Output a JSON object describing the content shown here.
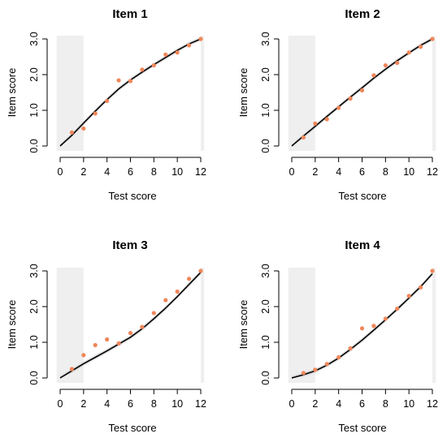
{
  "colors": {
    "point": "#f0865a",
    "curve": "#000000",
    "band": "#c8c8c8",
    "shade": "#efefef",
    "axis": "#000000"
  },
  "chart_data": [
    {
      "type": "scatter",
      "title": "Item 1",
      "xlabel": "Test score",
      "ylabel": "Item score",
      "xlim": [
        0,
        12
      ],
      "ylim": [
        0,
        3
      ],
      "xticks": [
        "0",
        "2",
        "4",
        "6",
        "8",
        "10",
        "12"
      ],
      "yticks": [
        "0.0",
        "1.0",
        "2.0",
        "3.0"
      ],
      "shaded_x": [
        [
          -0.3,
          2
        ],
        [
          12,
          12.3
        ]
      ],
      "points": [
        [
          1,
          0.38
        ],
        [
          2,
          0.49
        ],
        [
          3,
          0.91
        ],
        [
          4,
          1.26
        ],
        [
          5,
          1.84
        ],
        [
          6,
          1.82
        ],
        [
          7,
          2.14
        ],
        [
          8,
          2.26
        ],
        [
          9,
          2.56
        ],
        [
          10,
          2.62
        ],
        [
          11,
          2.82
        ],
        [
          12,
          3.0
        ]
      ],
      "curve": [
        [
          0,
          0.0
        ],
        [
          1,
          0.3
        ],
        [
          2,
          0.64
        ],
        [
          3,
          0.98
        ],
        [
          4,
          1.3
        ],
        [
          5,
          1.6
        ],
        [
          6,
          1.85
        ],
        [
          7,
          2.07
        ],
        [
          8,
          2.28
        ],
        [
          9,
          2.48
        ],
        [
          10,
          2.68
        ],
        [
          11,
          2.86
        ],
        [
          12,
          3.0
        ]
      ]
    },
    {
      "type": "scatter",
      "title": "Item 2",
      "xlabel": "Test score",
      "ylabel": "Item score",
      "xlim": [
        0,
        12
      ],
      "ylim": [
        0,
        3
      ],
      "xticks": [
        "0",
        "2",
        "4",
        "6",
        "8",
        "10",
        "12"
      ],
      "yticks": [
        "0.0",
        "1.0",
        "2.0",
        "3.0"
      ],
      "shaded_x": [
        [
          -0.3,
          2
        ],
        [
          12,
          12.3
        ]
      ],
      "points": [
        [
          1,
          0.24
        ],
        [
          2,
          0.63
        ],
        [
          3,
          0.75
        ],
        [
          4,
          1.07
        ],
        [
          5,
          1.33
        ],
        [
          6,
          1.56
        ],
        [
          7,
          1.98
        ],
        [
          8,
          2.26
        ],
        [
          9,
          2.33
        ],
        [
          10,
          2.62
        ],
        [
          11,
          2.78
        ],
        [
          12,
          3.0
        ]
      ],
      "curve": [
        [
          0,
          0.0
        ],
        [
          1,
          0.28
        ],
        [
          2,
          0.55
        ],
        [
          3,
          0.83
        ],
        [
          4,
          1.1
        ],
        [
          5,
          1.37
        ],
        [
          6,
          1.63
        ],
        [
          7,
          1.9
        ],
        [
          8,
          2.15
        ],
        [
          9,
          2.39
        ],
        [
          10,
          2.61
        ],
        [
          11,
          2.82
        ],
        [
          12,
          3.0
        ]
      ]
    },
    {
      "type": "scatter",
      "title": "Item 3",
      "xlabel": "Test score",
      "ylabel": "Item score",
      "xlim": [
        0,
        12
      ],
      "ylim": [
        0,
        3
      ],
      "xticks": [
        "0",
        "2",
        "4",
        "6",
        "8",
        "10",
        "12"
      ],
      "yticks": [
        "0.0",
        "1.0",
        "2.0",
        "3.0"
      ],
      "shaded_x": [
        [
          -0.3,
          2
        ],
        [
          12,
          12.3
        ]
      ],
      "points": [
        [
          1,
          0.25
        ],
        [
          2,
          0.64
        ],
        [
          3,
          0.92
        ],
        [
          4,
          1.08
        ],
        [
          5,
          0.97
        ],
        [
          6,
          1.26
        ],
        [
          7,
          1.43
        ],
        [
          8,
          1.82
        ],
        [
          9,
          2.18
        ],
        [
          10,
          2.42
        ],
        [
          11,
          2.78
        ],
        [
          12,
          3.0
        ]
      ],
      "curve": [
        [
          0,
          0.0
        ],
        [
          1,
          0.2
        ],
        [
          2,
          0.4
        ],
        [
          3,
          0.58
        ],
        [
          4,
          0.76
        ],
        [
          5,
          0.95
        ],
        [
          6,
          1.14
        ],
        [
          7,
          1.38
        ],
        [
          8,
          1.66
        ],
        [
          9,
          1.96
        ],
        [
          10,
          2.28
        ],
        [
          11,
          2.62
        ],
        [
          12,
          2.96
        ]
      ]
    },
    {
      "type": "scatter",
      "title": "Item 4",
      "xlabel": "Test score",
      "ylabel": "Item score",
      "xlim": [
        0,
        12
      ],
      "ylim": [
        0,
        3
      ],
      "xticks": [
        "0",
        "2",
        "4",
        "6",
        "8",
        "10",
        "12"
      ],
      "yticks": [
        "0.0",
        "1.0",
        "2.0",
        "3.0"
      ],
      "shaded_x": [
        [
          -0.3,
          2
        ],
        [
          12,
          12.3
        ]
      ],
      "points": [
        [
          1,
          0.14
        ],
        [
          2,
          0.23
        ],
        [
          3,
          0.39
        ],
        [
          4,
          0.58
        ],
        [
          5,
          0.83
        ],
        [
          6,
          1.39
        ],
        [
          7,
          1.46
        ],
        [
          8,
          1.66
        ],
        [
          9,
          1.94
        ],
        [
          10,
          2.3
        ],
        [
          11,
          2.54
        ],
        [
          12,
          3.0
        ]
      ],
      "curve": [
        [
          0,
          0.0
        ],
        [
          1,
          0.09
        ],
        [
          2,
          0.2
        ],
        [
          3,
          0.36
        ],
        [
          4,
          0.56
        ],
        [
          5,
          0.8
        ],
        [
          6,
          1.06
        ],
        [
          7,
          1.34
        ],
        [
          8,
          1.63
        ],
        [
          9,
          1.93
        ],
        [
          10,
          2.24
        ],
        [
          11,
          2.56
        ],
        [
          12,
          2.92
        ]
      ]
    }
  ]
}
